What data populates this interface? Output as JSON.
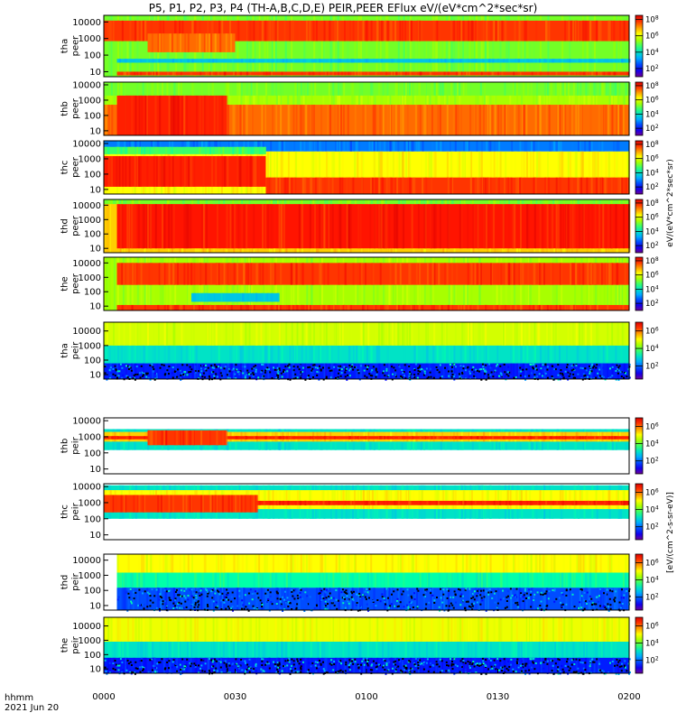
{
  "chart_data": {
    "type": "heatmap",
    "title": "P5, P1, P2, P3, P4 (TH-A,B,C,D,E) PEIR,PEER EFlux eV/(eV*cm^2*sec*sr)",
    "x_axis": {
      "label_line1": "hhmm",
      "label_line2": "2021 Jun 20",
      "ticks": [
        "0000",
        "0030",
        "0100",
        "0130",
        "0200"
      ],
      "range_minutes": [
        0,
        120
      ]
    },
    "y_scale": "log",
    "colorbar_label_peer": "eV/(eV*cm^2*sec*sr)",
    "colorbar_label_peir": "[eV/(cm^2-s-sr-eV)]",
    "panels": [
      {
        "probe": "tha",
        "species": "peer",
        "ylabel": [
          "tha",
          "peer"
        ],
        "yticks": [
          "10",
          "100",
          "1000",
          "10000"
        ],
        "ylim": [
          5,
          25000
        ],
        "cticks": [
          "10^2",
          "10^4",
          "10^6",
          "10^8"
        ],
        "clim_exp": [
          1,
          8.5
        ],
        "bands": [
          {
            "t": [
              0,
              120
            ],
            "e": [
              5,
              25000
            ],
            "lvl": 0.55
          },
          {
            "t": [
              0,
              120
            ],
            "e": [
              700,
              12000
            ],
            "lvl": 0.9
          },
          {
            "t": [
              3,
              120
            ],
            "e": [
              6,
              10
            ],
            "lvl": 0.9
          },
          {
            "t": [
              3,
              120
            ],
            "e": [
              35,
              60
            ],
            "lvl": 0.35
          },
          {
            "t": [
              10,
              30
            ],
            "e": [
              150,
              2000
            ],
            "lvl": 0.85
          }
        ]
      },
      {
        "probe": "thb",
        "species": "peer",
        "ylabel": [
          "thb",
          "peer"
        ],
        "yticks": [
          "10",
          "100",
          "1000",
          "10000"
        ],
        "ylim": [
          5,
          15000
        ],
        "cticks": [
          "10^2",
          "10^4",
          "10^6",
          "10^8"
        ],
        "clim_exp": [
          1,
          8.5
        ],
        "bands": [
          {
            "t": [
              0,
              120
            ],
            "e": [
              5,
              15000
            ],
            "lvl": 0.6
          },
          {
            "t": [
              0,
              120
            ],
            "e": [
              5,
              500
            ],
            "lvl": 0.85
          },
          {
            "t": [
              3,
              28
            ],
            "e": [
              5,
              3000
            ],
            "lvl": 0.92
          },
          {
            "t": [
              0,
              120
            ],
            "e": [
              2000,
              15000
            ],
            "lvl": 0.55
          }
        ]
      },
      {
        "probe": "thc",
        "species": "peer",
        "ylabel": [
          "thc",
          "peer"
        ],
        "yticks": [
          "10",
          "100",
          "1000",
          "10000"
        ],
        "ylim": [
          5,
          15000
        ],
        "cticks": [
          "10^2",
          "10^4",
          "10^6",
          "10^8"
        ],
        "clim_exp": [
          1,
          8.5
        ],
        "bands": [
          {
            "t": [
              0,
              120
            ],
            "e": [
              3000,
              15000
            ],
            "lvl": 0.25
          },
          {
            "t": [
              0,
              120
            ],
            "e": [
              5,
              3000
            ],
            "lvl": 0.7
          },
          {
            "t": [
              0,
              37
            ],
            "e": [
              15,
              1500
            ],
            "lvl": 0.92
          },
          {
            "t": [
              37,
              120
            ],
            "e": [
              5,
              60
            ],
            "lvl": 0.9
          },
          {
            "t": [
              0,
              37
            ],
            "e": [
              2000,
              6000
            ],
            "lvl": 0.5
          }
        ]
      },
      {
        "probe": "thd",
        "species": "peer",
        "ylabel": [
          "thd",
          "peer"
        ],
        "yticks": [
          "10",
          "100",
          "1000",
          "10000"
        ],
        "ylim": [
          5,
          25000
        ],
        "cticks": [
          "10^2",
          "10^4",
          "10^6",
          "10^8"
        ],
        "clim_exp": [
          1,
          8.5
        ],
        "bands": [
          {
            "t": [
              0,
              120
            ],
            "e": [
              5,
              25000
            ],
            "lvl": 0.75
          },
          {
            "t": [
              3,
              120
            ],
            "e": [
              10,
              12000
            ],
            "lvl": 0.93
          },
          {
            "t": [
              0,
              120
            ],
            "e": [
              12000,
              25000
            ],
            "lvl": 0.55
          }
        ]
      },
      {
        "probe": "the",
        "species": "peer",
        "ylabel": [
          "the",
          "peer"
        ],
        "yticks": [
          "10",
          "100",
          "1000",
          "10000"
        ],
        "ylim": [
          5,
          25000
        ],
        "cticks": [
          "10^2",
          "10^4",
          "10^6",
          "10^8"
        ],
        "clim_exp": [
          1,
          8.5
        ],
        "bands": [
          {
            "t": [
              0,
              120
            ],
            "e": [
              5,
              25000
            ],
            "lvl": 0.6
          },
          {
            "t": [
              3,
              120
            ],
            "e": [
              300,
              10000
            ],
            "lvl": 0.9
          },
          {
            "t": [
              3,
              120
            ],
            "e": [
              5,
              12
            ],
            "lvl": 0.9
          },
          {
            "t": [
              20,
              40
            ],
            "e": [
              20,
              80
            ],
            "lvl": 0.35
          }
        ]
      },
      {
        "probe": "tha",
        "species": "peir",
        "ylabel": [
          "tha",
          "peir"
        ],
        "yticks": [
          "10",
          "100",
          "1000",
          "10000"
        ],
        "ylim": [
          5,
          40000
        ],
        "cticks": [
          "10^2",
          "10^4",
          "10^6"
        ],
        "clim_exp": [
          0.5,
          7
        ],
        "bands": [
          {
            "t": [
              0,
              120
            ],
            "e": [
              5,
              40000
            ],
            "lvl": 0.4
          },
          {
            "t": [
              0,
              120
            ],
            "e": [
              1000,
              40000
            ],
            "lvl": 0.65
          },
          {
            "t": [
              0,
              120
            ],
            "e": [
              5,
              60
            ],
            "lvl": 0.15,
            "speckle": true
          }
        ]
      },
      {
        "probe": "thb",
        "species": "peir",
        "ylabel": [
          "thb",
          "peir"
        ],
        "yticks": [
          "10",
          "100",
          "1000",
          "10000"
        ],
        "ylim": [
          5,
          15000
        ],
        "cticks": [
          "10^2",
          "10^4",
          "10^6"
        ],
        "clim_exp": [
          0.5,
          7
        ],
        "bands": [
          {
            "t": [
              0,
              120
            ],
            "e": [
              150,
              3000
            ],
            "lvl": 0.4
          },
          {
            "t": [
              0,
              120
            ],
            "e": [
              500,
              2000
            ],
            "lvl": 0.75
          },
          {
            "t": [
              0,
              120
            ],
            "e": [
              700,
              1100
            ],
            "lvl": 0.92
          },
          {
            "t": [
              10,
              28
            ],
            "e": [
              300,
              2500
            ],
            "lvl": 0.9
          }
        ]
      },
      {
        "probe": "thc",
        "species": "peir",
        "ylabel": [
          "thc",
          "peir"
        ],
        "yticks": [
          "10",
          "100",
          "1000",
          "10000"
        ],
        "ylim": [
          5,
          15000
        ],
        "cticks": [
          "10^2",
          "10^4",
          "10^6"
        ],
        "clim_exp": [
          0.5,
          7
        ],
        "bands": [
          {
            "t": [
              0,
              120
            ],
            "e": [
              100,
              12000
            ],
            "lvl": 0.4
          },
          {
            "t": [
              0,
              120
            ],
            "e": [
              400,
              6000
            ],
            "lvl": 0.7
          },
          {
            "t": [
              0,
              120
            ],
            "e": [
              700,
              1300
            ],
            "lvl": 0.92
          },
          {
            "t": [
              0,
              35
            ],
            "e": [
              250,
              3000
            ],
            "lvl": 0.9
          }
        ]
      },
      {
        "probe": "thd",
        "species": "peir",
        "ylabel": [
          "thd",
          "peir"
        ],
        "yticks": [
          "10",
          "100",
          "1000",
          "10000"
        ],
        "ylim": [
          5,
          25000
        ],
        "cticks": [
          "10^2",
          "10^4",
          "10^6"
        ],
        "clim_exp": [
          0.5,
          7
        ],
        "bands": [
          {
            "t": [
              3,
              120
            ],
            "e": [
              5,
              25000
            ],
            "lvl": 0.45
          },
          {
            "t": [
              3,
              120
            ],
            "e": [
              1500,
              25000
            ],
            "lvl": 0.7
          },
          {
            "t": [
              3,
              120
            ],
            "e": [
              5,
              150
            ],
            "lvl": 0.2,
            "speckle": true
          }
        ]
      },
      {
        "probe": "the",
        "species": "peir",
        "ylabel": [
          "the",
          "peir"
        ],
        "yticks": [
          "10",
          "100",
          "1000",
          "10000"
        ],
        "ylim": [
          5,
          40000
        ],
        "cticks": [
          "10^2",
          "10^4",
          "10^6"
        ],
        "clim_exp": [
          0.5,
          7
        ],
        "bands": [
          {
            "t": [
              0,
              120
            ],
            "e": [
              5,
              40000
            ],
            "lvl": 0.4
          },
          {
            "t": [
              0,
              120
            ],
            "e": [
              800,
              40000
            ],
            "lvl": 0.68
          },
          {
            "t": [
              0,
              120
            ],
            "e": [
              5,
              60
            ],
            "lvl": 0.15,
            "speckle": true
          }
        ]
      }
    ]
  }
}
